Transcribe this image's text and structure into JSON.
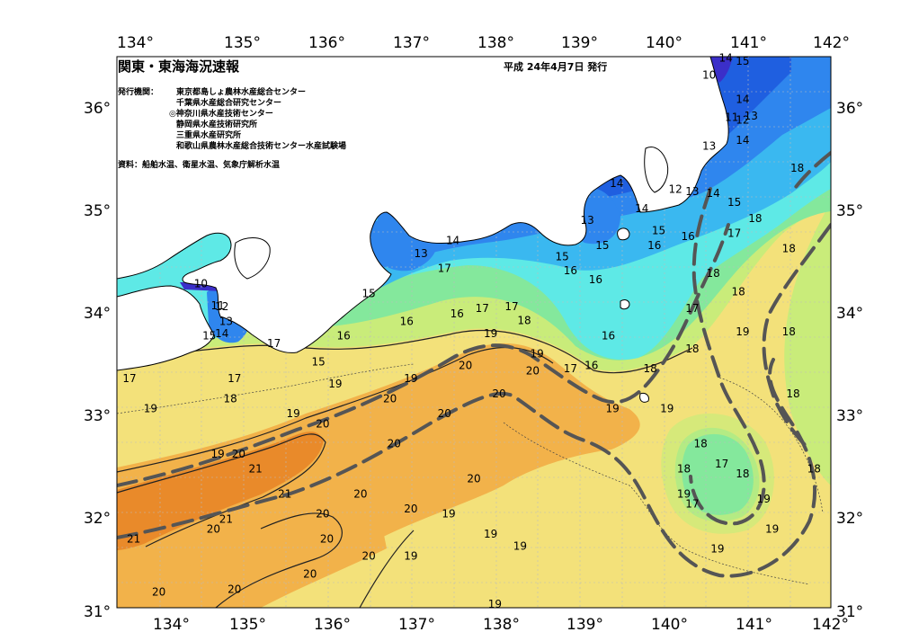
{
  "header": {
    "title": "関東・東海海況速報",
    "date": "平成 24年4月7日 発行",
    "issuer_label": "発行機関：",
    "issuers": [
      "東京都島しょ農林水産総合センター",
      "千葉県水産総合研究センター",
      "◎神奈川県水産技術センター",
      "静岡県水産技術研究所",
      "三重県水産研究所",
      "和歌山県農林水産総合技術センター水産試験場"
    ],
    "source": "資料：船舶水温、衛星水温、気象庁解析水温"
  },
  "axes": {
    "lon_ticks_top": [
      "134°",
      "135°",
      "136°",
      "137°",
      "138°",
      "139°",
      "140°",
      "141°",
      "142°"
    ],
    "lon_ticks_bottom": [
      "134°",
      "135°",
      "136°",
      "137°",
      "138°",
      "139°",
      "140°",
      "141°",
      "142°"
    ],
    "lat_ticks_left": [
      "36°",
      "35°",
      "34°",
      "33°",
      "32°",
      "31°"
    ],
    "lat_ticks_right": [
      "36°",
      "35°",
      "34°",
      "33°",
      "32°",
      "31°"
    ],
    "lon_range": [
      133.5,
      142
    ],
    "lat_range": [
      31,
      36.5
    ]
  },
  "colors": {
    "t10": "#3b2fc9",
    "t12": "#1f5fe0",
    "t14": "#2f86ee",
    "t15": "#3ab8f0",
    "t16": "#5ee9e6",
    "t17": "#84e89c",
    "t18": "#c9ec7a",
    "t19": "#f3e17a",
    "t20": "#f2b24a",
    "t21": "#e98a2a",
    "land": "#ffffff",
    "kuroshio": "#555555"
  },
  "contour_labels": [
    {
      "text": "14",
      "lon": 140.75,
      "lat": 36.45
    },
    {
      "text": "15",
      "lon": 140.95,
      "lat": 36.42
    },
    {
      "text": "10",
      "lon": 140.55,
      "lat": 36.28
    },
    {
      "text": "14",
      "lon": 140.95,
      "lat": 36.04
    },
    {
      "text": "13",
      "lon": 141.05,
      "lat": 35.87
    },
    {
      "text": "11",
      "lon": 140.82,
      "lat": 35.86
    },
    {
      "text": "12",
      "lon": 140.95,
      "lat": 35.83
    },
    {
      "text": "13",
      "lon": 140.55,
      "lat": 35.57
    },
    {
      "text": "14",
      "lon": 140.95,
      "lat": 35.63
    },
    {
      "text": "14",
      "lon": 139.45,
      "lat": 35.2
    },
    {
      "text": "12",
      "lon": 140.15,
      "lat": 35.14
    },
    {
      "text": "13",
      "lon": 140.35,
      "lat": 35.12
    },
    {
      "text": "14",
      "lon": 140.6,
      "lat": 35.1
    },
    {
      "text": "15",
      "lon": 140.85,
      "lat": 35.01
    },
    {
      "text": "18",
      "lon": 141.6,
      "lat": 35.35
    },
    {
      "text": "14",
      "lon": 139.75,
      "lat": 34.95
    },
    {
      "text": "13",
      "lon": 139.1,
      "lat": 34.83
    },
    {
      "text": "15",
      "lon": 139.95,
      "lat": 34.73
    },
    {
      "text": "16",
      "lon": 140.3,
      "lat": 34.67
    },
    {
      "text": "17",
      "lon": 140.85,
      "lat": 34.7
    },
    {
      "text": "18",
      "lon": 141.1,
      "lat": 34.85
    },
    {
      "text": "18",
      "lon": 141.5,
      "lat": 34.55
    },
    {
      "text": "14",
      "lon": 137.5,
      "lat": 34.63
    },
    {
      "text": "13",
      "lon": 137.12,
      "lat": 34.5
    },
    {
      "text": "15",
      "lon": 138.8,
      "lat": 34.47
    },
    {
      "text": "15",
      "lon": 139.28,
      "lat": 34.58
    },
    {
      "text": "16",
      "lon": 139.9,
      "lat": 34.58
    },
    {
      "text": "17",
      "lon": 137.4,
      "lat": 34.35
    },
    {
      "text": "16",
      "lon": 138.9,
      "lat": 34.33
    },
    {
      "text": "16",
      "lon": 139.2,
      "lat": 34.24
    },
    {
      "text": "18",
      "lon": 140.6,
      "lat": 34.3
    },
    {
      "text": "18",
      "lon": 140.9,
      "lat": 34.12
    },
    {
      "text": "15",
      "lon": 136.5,
      "lat": 34.1
    },
    {
      "text": "17",
      "lon": 138.2,
      "lat": 33.97
    },
    {
      "text": "17",
      "lon": 137.85,
      "lat": 33.95
    },
    {
      "text": "16",
      "lon": 137.55,
      "lat": 33.9
    },
    {
      "text": "18",
      "lon": 138.35,
      "lat": 33.83
    },
    {
      "text": "17",
      "lon": 140.35,
      "lat": 33.95
    },
    {
      "text": "16",
      "lon": 136.95,
      "lat": 33.82
    },
    {
      "text": "10",
      "lon": 134.5,
      "lat": 34.2
    },
    {
      "text": "11",
      "lon": 134.7,
      "lat": 33.98
    },
    {
      "text": "12",
      "lon": 134.75,
      "lat": 33.97
    },
    {
      "text": "13",
      "lon": 134.8,
      "lat": 33.82
    },
    {
      "text": "14",
      "lon": 134.75,
      "lat": 33.7
    },
    {
      "text": "15",
      "lon": 134.6,
      "lat": 33.68
    },
    {
      "text": "16",
      "lon": 136.2,
      "lat": 33.68
    },
    {
      "text": "16",
      "lon": 139.35,
      "lat": 33.68
    },
    {
      "text": "19",
      "lon": 140.95,
      "lat": 33.72
    },
    {
      "text": "18",
      "lon": 141.5,
      "lat": 33.72
    },
    {
      "text": "18",
      "lon": 140.35,
      "lat": 33.55
    },
    {
      "text": "17",
      "lon": 135.37,
      "lat": 33.6
    },
    {
      "text": "19",
      "lon": 137.95,
      "lat": 33.7
    },
    {
      "text": "19",
      "lon": 138.5,
      "lat": 33.5
    },
    {
      "text": "15",
      "lon": 135.9,
      "lat": 33.42
    },
    {
      "text": "20",
      "lon": 137.65,
      "lat": 33.38
    },
    {
      "text": "20",
      "lon": 138.45,
      "lat": 33.33
    },
    {
      "text": "17",
      "lon": 138.9,
      "lat": 33.35
    },
    {
      "text": "16",
      "lon": 139.15,
      "lat": 33.38
    },
    {
      "text": "18",
      "lon": 139.85,
      "lat": 33.35
    },
    {
      "text": "17",
      "lon": 133.65,
      "lat": 33.25
    },
    {
      "text": "19",
      "lon": 137.0,
      "lat": 33.25
    },
    {
      "text": "17",
      "lon": 134.9,
      "lat": 33.25
    },
    {
      "text": "19",
      "lon": 136.1,
      "lat": 33.2
    },
    {
      "text": "18",
      "lon": 141.55,
      "lat": 33.1
    },
    {
      "text": "20",
      "lon": 138.05,
      "lat": 33.1
    },
    {
      "text": "18",
      "lon": 134.85,
      "lat": 33.05
    },
    {
      "text": "20",
      "lon": 136.75,
      "lat": 33.05
    },
    {
      "text": "19",
      "lon": 139.4,
      "lat": 32.95
    },
    {
      "text": "19",
      "lon": 140.05,
      "lat": 32.95
    },
    {
      "text": "19",
      "lon": 133.9,
      "lat": 32.95
    },
    {
      "text": "20",
      "lon": 137.4,
      "lat": 32.9
    },
    {
      "text": "19",
      "lon": 135.6,
      "lat": 32.9
    },
    {
      "text": "20",
      "lon": 135.95,
      "lat": 32.8
    },
    {
      "text": "20",
      "lon": 136.8,
      "lat": 32.6
    },
    {
      "text": "18",
      "lon": 140.45,
      "lat": 32.6
    },
    {
      "text": "19",
      "lon": 134.7,
      "lat": 32.5
    },
    {
      "text": "20",
      "lon": 134.95,
      "lat": 32.5
    },
    {
      "text": "17",
      "lon": 140.7,
      "lat": 32.4
    },
    {
      "text": "21",
      "lon": 135.15,
      "lat": 32.35
    },
    {
      "text": "18",
      "lon": 140.25,
      "lat": 32.35
    },
    {
      "text": "18",
      "lon": 140.95,
      "lat": 32.3
    },
    {
      "text": "18",
      "lon": 141.8,
      "lat": 32.35
    },
    {
      "text": "20",
      "lon": 137.75,
      "lat": 32.25
    },
    {
      "text": "21",
      "lon": 135.5,
      "lat": 32.1
    },
    {
      "text": "20",
      "lon": 136.4,
      "lat": 32.1
    },
    {
      "text": "19",
      "lon": 140.25,
      "lat": 32.1
    },
    {
      "text": "19",
      "lon": 141.2,
      "lat": 32.05
    },
    {
      "text": "17",
      "lon": 140.35,
      "lat": 32.0
    },
    {
      "text": "20",
      "lon": 137.0,
      "lat": 31.95
    },
    {
      "text": "20",
      "lon": 135.95,
      "lat": 31.9
    },
    {
      "text": "19",
      "lon": 137.45,
      "lat": 31.9
    },
    {
      "text": "21",
      "lon": 134.8,
      "lat": 31.85
    },
    {
      "text": "20",
      "lon": 134.65,
      "lat": 31.75
    },
    {
      "text": "19",
      "lon": 141.3,
      "lat": 31.75
    },
    {
      "text": "19",
      "lon": 137.95,
      "lat": 31.7
    },
    {
      "text": "20",
      "lon": 136.0,
      "lat": 31.65
    },
    {
      "text": "21",
      "lon": 133.7,
      "lat": 31.65
    },
    {
      "text": "19",
      "lon": 138.3,
      "lat": 31.58
    },
    {
      "text": "19",
      "lon": 140.65,
      "lat": 31.55
    },
    {
      "text": "20",
      "lon": 136.5,
      "lat": 31.48
    },
    {
      "text": "19",
      "lon": 137.0,
      "lat": 31.48
    },
    {
      "text": "20",
      "lon": 135.8,
      "lat": 31.3
    },
    {
      "text": "20",
      "lon": 134.9,
      "lat": 31.15
    },
    {
      "text": "20",
      "lon": 134.0,
      "lat": 31.12
    },
    {
      "text": "19",
      "lon": 138.0,
      "lat": 31.0
    }
  ]
}
